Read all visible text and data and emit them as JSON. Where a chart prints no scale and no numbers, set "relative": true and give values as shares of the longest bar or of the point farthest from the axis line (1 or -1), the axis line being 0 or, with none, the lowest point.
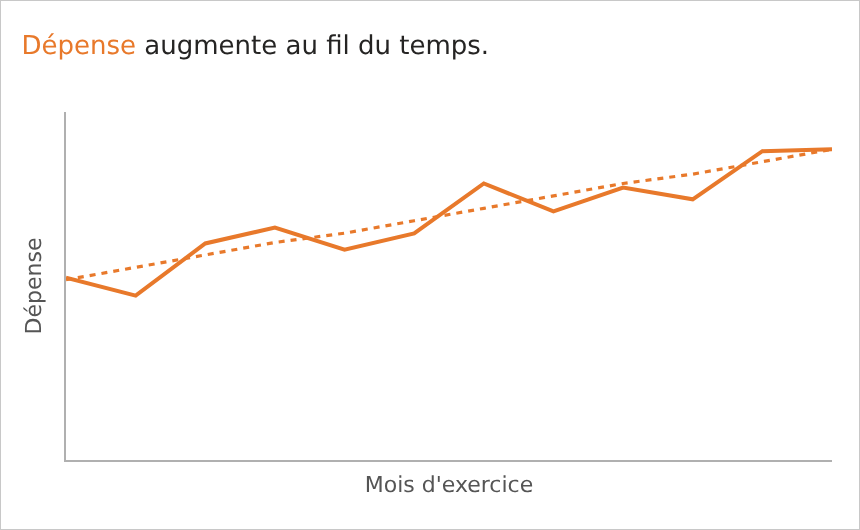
{
  "chart_data": {
    "type": "line",
    "title": "Dépense augmente au fil du temps.",
    "xlabel": "Mois d'exercice",
    "ylabel": "Dépense",
    "relative": true,
    "categories": [
      null,
      null,
      null,
      null,
      null,
      null,
      null,
      null,
      null,
      null,
      null,
      null
    ],
    "legend": false,
    "marker": "none",
    "series": [
      {
        "color": "#e8792b",
        "line_style": "solid",
        "values": [
          0.587,
          0.529,
          0.697,
          0.748,
          0.677,
          0.729,
          0.89,
          0.8,
          0.877,
          0.839,
          0.994,
          1.0
        ]
      },
      {
        "color": "#e8792b",
        "line_style": "dotted",
        "values": [
          0.58,
          0.62,
          0.66,
          0.7,
          0.73,
          0.77,
          0.81,
          0.85,
          0.89,
          0.92,
          0.96,
          1.0
        ]
      }
    ]
  }
}
